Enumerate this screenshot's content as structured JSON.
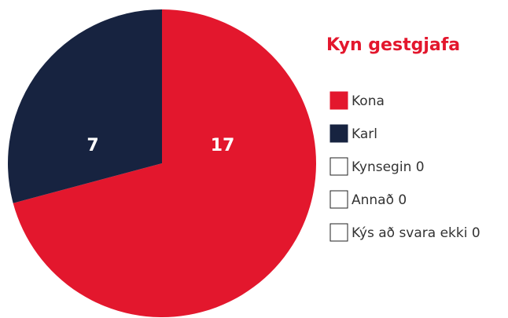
{
  "chart_data": {
    "type": "pie",
    "title": "Kyn gestgjafa",
    "categories": [
      "Kona",
      "Karl",
      "Kynsegin 0",
      "Annað 0",
      "Kýs að svara ekki 0"
    ],
    "values": [
      17,
      7,
      0,
      0,
      0
    ],
    "colors": [
      "#e3172d",
      "#172340",
      "#ffffff",
      "#ffffff",
      "#ffffff"
    ]
  }
}
